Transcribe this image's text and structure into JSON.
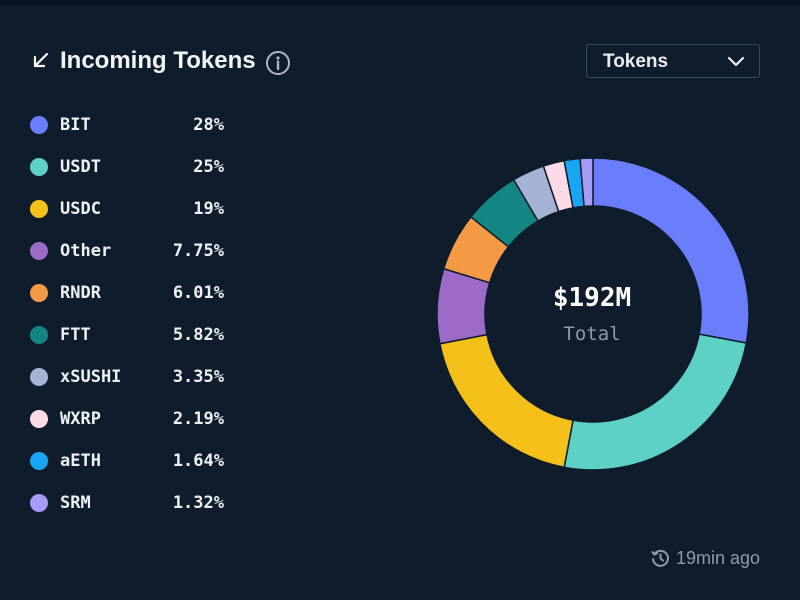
{
  "header": {
    "title": "Incoming Tokens",
    "dropdown": {
      "selected": "Tokens"
    }
  },
  "chart_data": {
    "type": "pie",
    "categories": [
      "BIT",
      "USDT",
      "USDC",
      "Other",
      "RNDR",
      "FTT",
      "xSUSHI",
      "WXRP",
      "aETH",
      "SRM"
    ],
    "values": [
      28,
      25,
      19,
      7.75,
      6.01,
      5.82,
      3.35,
      2.19,
      1.64,
      1.32
    ],
    "labels": [
      "28%",
      "25%",
      "19%",
      "7.75%",
      "6.01%",
      "5.82%",
      "3.35%",
      "2.19%",
      "1.64%",
      "1.32%"
    ],
    "colors": [
      "#6a7dfb",
      "#5ed1c7",
      "#f5c01a",
      "#9b6bc7",
      "#f49a44",
      "#138583",
      "#a4b2d3",
      "#fcdbe6",
      "#18a6f4",
      "#a69bf7"
    ],
    "donut": true,
    "center_value": "$192M",
    "center_label": "Total",
    "legend_position": "left"
  },
  "footer": {
    "updated": "19min ago"
  }
}
